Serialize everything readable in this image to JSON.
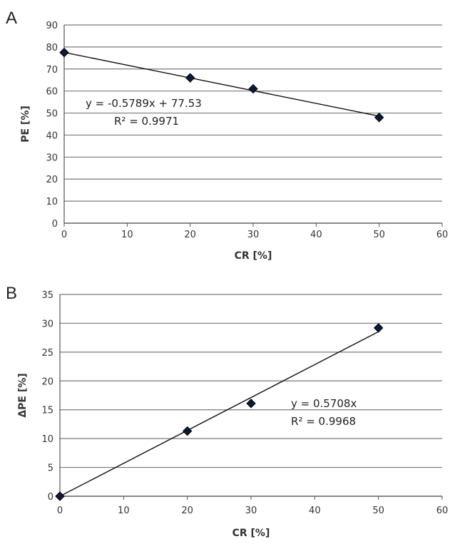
{
  "chart_data": [
    {
      "panel": "A",
      "type": "scatter",
      "xlabel": "CR [%]",
      "ylabel": "PE [%]",
      "xlim": [
        0,
        60
      ],
      "ylim": [
        0,
        90
      ],
      "xticks": [
        0,
        10,
        20,
        30,
        40,
        50,
        60
      ],
      "yticks": [
        0,
        10,
        20,
        30,
        40,
        50,
        60,
        70,
        80,
        90
      ],
      "grid": "horizontal",
      "x": [
        0,
        20,
        30,
        50
      ],
      "y": [
        77.5,
        66,
        61,
        48
      ],
      "trendline": {
        "slope": -0.5789,
        "intercept": 77.53
      },
      "equation": "y = -0.5789x + 77.53",
      "r2_label": "R² = 0.9971"
    },
    {
      "panel": "B",
      "type": "scatter",
      "xlabel": "CR [%]",
      "ylabel": "ΔPE [%]",
      "xlim": [
        0,
        60
      ],
      "ylim": [
        0,
        35
      ],
      "xticks": [
        0,
        10,
        20,
        30,
        40,
        50,
        60
      ],
      "yticks": [
        0,
        5,
        10,
        15,
        20,
        25,
        30,
        35
      ],
      "grid": "horizontal",
      "x": [
        0,
        20,
        30,
        50
      ],
      "y": [
        0,
        11.3,
        16.1,
        29.2
      ],
      "trendline": {
        "slope": 0.5708,
        "intercept": 0
      },
      "equation": "y = 0.5708x",
      "r2_label": "R² = 0.9968"
    }
  ]
}
